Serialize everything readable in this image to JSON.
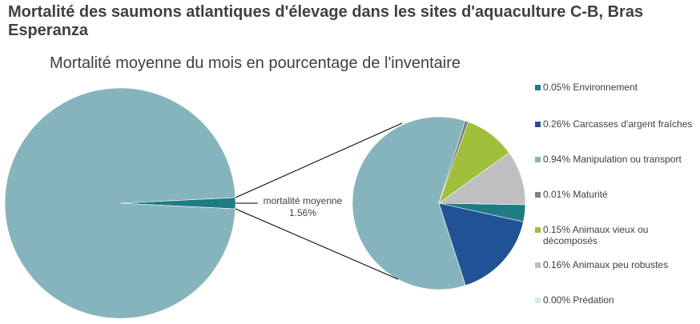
{
  "chart_data": {
    "type": "pie",
    "subtype": "pie-of-pie",
    "title": "Mortalité des saumons atlantiques d'élevage dans les sites d'aquaculture C-B, Bras Esperanza",
    "subtitle": "Mortalité moyenne du mois en pourcentage de l'inventaire",
    "main_pie": {
      "slices": [
        {
          "label": "",
          "value": 98.44,
          "color": "#86B4BC"
        },
        {
          "label": "mortalité moyenne",
          "value": 1.56,
          "value_label": "1.56%",
          "color": "#1F7C84"
        }
      ]
    },
    "secondary_pie": {
      "slices": [
        {
          "label": "0.05% Environnement",
          "value": 0.05,
          "color": "#1F7C84"
        },
        {
          "label": "0.26% Carcasses d'argent fraîches",
          "value": 0.26,
          "color": "#215296"
        },
        {
          "label": "0.94% Manipulation ou transport",
          "value": 0.94,
          "color": "#86B4BC"
        },
        {
          "label": "0.01% Maturité",
          "value": 0.01,
          "color": "#7F7F7F"
        },
        {
          "label": "0.15% Animaux vieux ou décomposés",
          "value": 0.15,
          "color": "#A0BF3A"
        },
        {
          "label": "0.16% Animaux peu robustes",
          "value": 0.16,
          "color": "#BFBFBF"
        },
        {
          "label": "0.00% Prédation",
          "value": 0.0,
          "color": "#D3EBE7"
        }
      ]
    },
    "legend_position": "right"
  }
}
